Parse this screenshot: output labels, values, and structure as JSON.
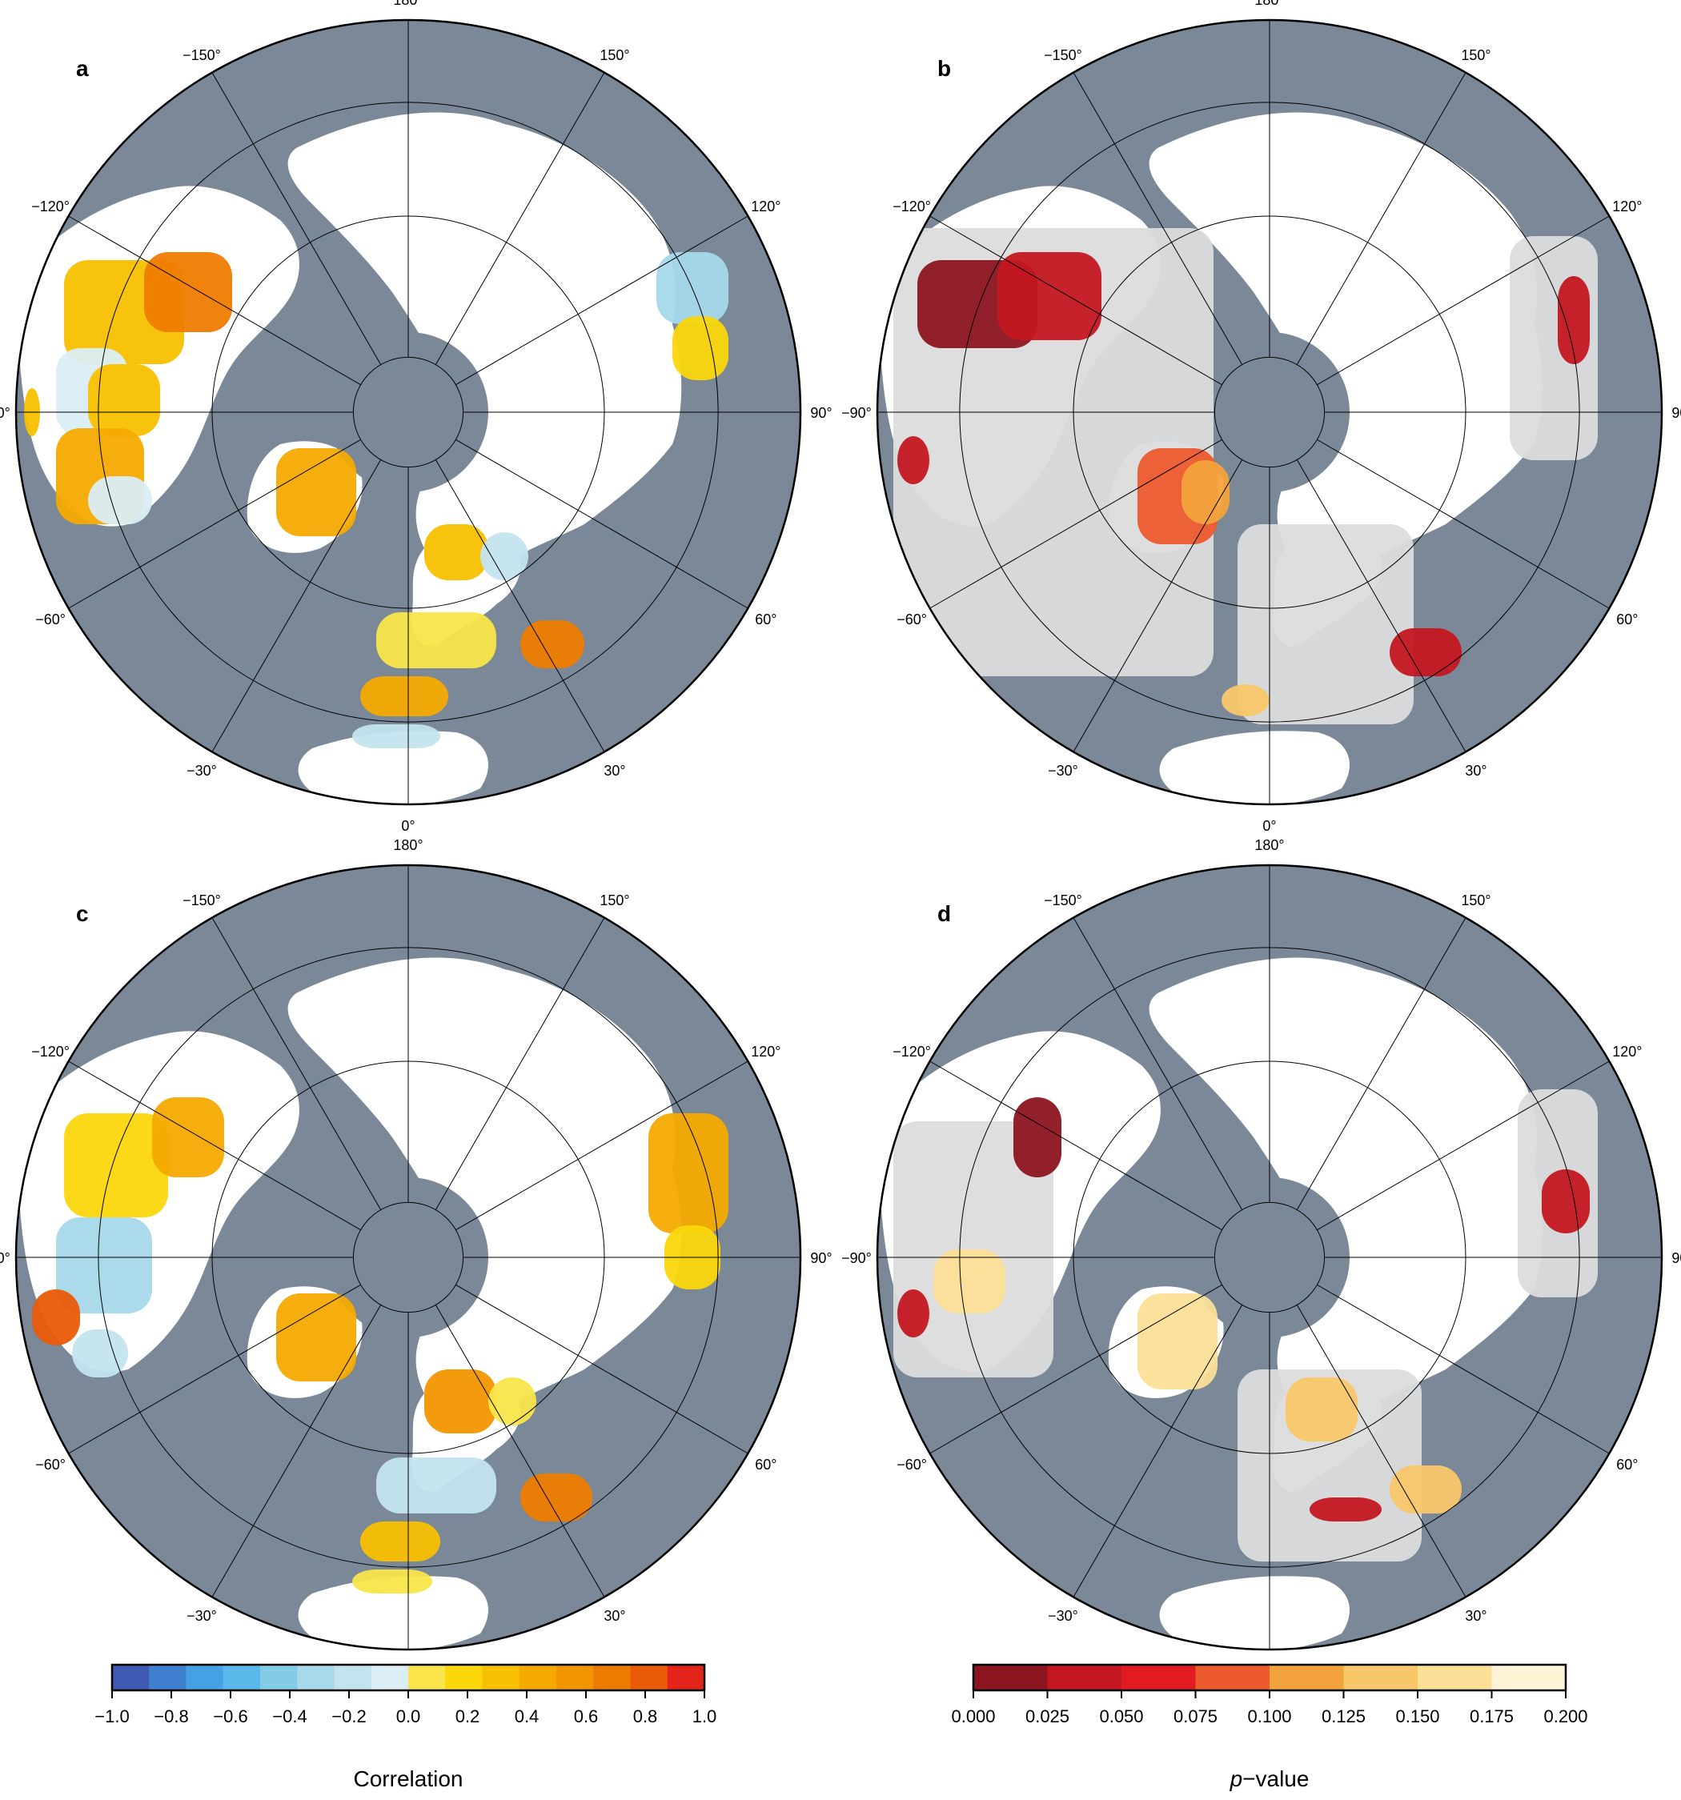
{
  "panels": [
    {
      "id": "a",
      "label": "a",
      "type": "correlation"
    },
    {
      "id": "b",
      "label": "b",
      "type": "p-value"
    },
    {
      "id": "c",
      "label": "c",
      "type": "correlation"
    },
    {
      "id": "d",
      "label": "d",
      "type": "p-value"
    }
  ],
  "longitude_labels": [
    "180°",
    "150°",
    "120°",
    "90°",
    "60°",
    "30°",
    "0°",
    "−30°",
    "−60°",
    "−90°",
    "−120°",
    "−150°"
  ],
  "colors": {
    "ocean": "#7b8898",
    "land": "#ffffff",
    "no_data_gray": "#dcdcdc"
  },
  "legend_correlation": {
    "title": "Correlation",
    "tick_labels": [
      "−1.0",
      "−0.8",
      "−0.6",
      "−0.4",
      "−0.2",
      "0.0",
      "0.2",
      "0.4",
      "0.6",
      "0.8",
      "1.0"
    ],
    "range": [
      -1.0,
      1.0
    ],
    "colors": [
      "#3c5bb0",
      "#3e7fd0",
      "#44a2e4",
      "#5bb8ea",
      "#82cce8",
      "#a6d9ea",
      "#c3e4ee",
      "#daeef5",
      "#f9e54a",
      "#fbd70c",
      "#f8c000",
      "#f4aa00",
      "#f29600",
      "#ee7c00",
      "#ea5b08",
      "#e2231a"
    ]
  },
  "legend_pvalue": {
    "title": "p−value",
    "title_italic": "p",
    "title_rest": "−value",
    "tick_labels": [
      "0.000",
      "0.025",
      "0.050",
      "0.075",
      "0.100",
      "0.125",
      "0.150",
      "0.175",
      "0.200"
    ],
    "range": [
      0.0,
      0.2
    ],
    "colors": [
      "#8c1520",
      "#c41721",
      "#e01b21",
      "#ec5a2e",
      "#f3a33c",
      "#f8c76a",
      "#fbdf97",
      "#fdf4d7"
    ]
  }
}
